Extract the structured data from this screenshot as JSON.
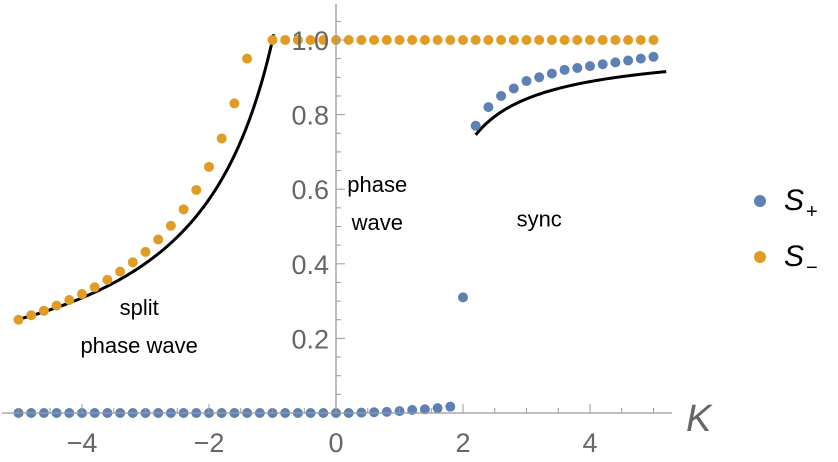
{
  "chart_data": {
    "type": "scatter",
    "xlabel": "K",
    "ylabel": "",
    "xlim": [
      -5.2,
      5.2
    ],
    "ylim": [
      0,
      1.1
    ],
    "x_ticks": [
      -4,
      -2,
      0,
      2,
      4
    ],
    "x_tick_labels": [
      "−4",
      "−2",
      "0",
      "2",
      "4"
    ],
    "y_ticks": [
      0.2,
      0.4,
      0.6,
      0.8,
      1.0
    ],
    "y_tick_labels": [
      "0.2",
      "0.4",
      "0.6",
      "0.8",
      "1.0"
    ],
    "grid": false,
    "legend_position": "right",
    "series": [
      {
        "name": "S",
        "subscript": "+",
        "color": "#5e81b5",
        "points": [
          [
            -5.0,
            0
          ],
          [
            -4.8,
            0
          ],
          [
            -4.6,
            0
          ],
          [
            -4.4,
            0
          ],
          [
            -4.2,
            0
          ],
          [
            -4.0,
            0
          ],
          [
            -3.8,
            0
          ],
          [
            -3.6,
            0
          ],
          [
            -3.4,
            0
          ],
          [
            -3.2,
            0
          ],
          [
            -3.0,
            0
          ],
          [
            -2.8,
            0
          ],
          [
            -2.6,
            0
          ],
          [
            -2.4,
            0
          ],
          [
            -2.2,
            0
          ],
          [
            -2.0,
            0
          ],
          [
            -1.8,
            0
          ],
          [
            -1.6,
            0
          ],
          [
            -1.4,
            0
          ],
          [
            -1.2,
            0
          ],
          [
            -1.0,
            0
          ],
          [
            -0.8,
            0
          ],
          [
            -0.6,
            0
          ],
          [
            -0.4,
            0
          ],
          [
            -0.2,
            0
          ],
          [
            0.0,
            0
          ],
          [
            0.2,
            0
          ],
          [
            0.4,
            0.001
          ],
          [
            0.6,
            0.002
          ],
          [
            0.8,
            0.003
          ],
          [
            1.0,
            0.005
          ],
          [
            1.2,
            0.008
          ],
          [
            1.4,
            0.01
          ],
          [
            1.6,
            0.013
          ],
          [
            1.8,
            0.017
          ],
          [
            2.0,
            0.31
          ],
          [
            2.2,
            0.77
          ],
          [
            2.4,
            0.82
          ],
          [
            2.6,
            0.85
          ],
          [
            2.8,
            0.87
          ],
          [
            3.0,
            0.89
          ],
          [
            3.2,
            0.9
          ],
          [
            3.4,
            0.91
          ],
          [
            3.6,
            0.92
          ],
          [
            3.8,
            0.925
          ],
          [
            4.0,
            0.93
          ],
          [
            4.2,
            0.935
          ],
          [
            4.4,
            0.94
          ],
          [
            4.6,
            0.945
          ],
          [
            4.8,
            0.95
          ],
          [
            5.0,
            0.955
          ]
        ]
      },
      {
        "name": "S",
        "subscript": "−",
        "color": "#e19c24",
        "points": [
          [
            -5.0,
            0.25
          ],
          [
            -4.8,
            0.262
          ],
          [
            -4.6,
            0.274
          ],
          [
            -4.4,
            0.288
          ],
          [
            -4.2,
            0.303
          ],
          [
            -4.0,
            0.319
          ],
          [
            -3.8,
            0.337
          ],
          [
            -3.6,
            0.357
          ],
          [
            -3.4,
            0.379
          ],
          [
            -3.2,
            0.404
          ],
          [
            -3.0,
            0.432
          ],
          [
            -2.8,
            0.465
          ],
          [
            -2.6,
            0.502
          ],
          [
            -2.4,
            0.546
          ],
          [
            -2.2,
            0.598
          ],
          [
            -2.0,
            0.66
          ],
          [
            -1.8,
            0.736
          ],
          [
            -1.6,
            0.83
          ],
          [
            -1.4,
            0.95
          ],
          [
            -1.0,
            1.0
          ],
          [
            -0.8,
            1.0
          ],
          [
            -0.6,
            1.0
          ],
          [
            -0.4,
            1.0
          ],
          [
            -0.2,
            1.0
          ],
          [
            0.0,
            1.0
          ],
          [
            0.2,
            1.0
          ],
          [
            0.4,
            1.0
          ],
          [
            0.6,
            1.0
          ],
          [
            0.8,
            1.0
          ],
          [
            1.0,
            1.0
          ],
          [
            1.2,
            1.0
          ],
          [
            1.4,
            1.0
          ],
          [
            1.6,
            1.0
          ],
          [
            1.8,
            1.0
          ],
          [
            2.0,
            1.0
          ],
          [
            2.2,
            1.0
          ],
          [
            2.4,
            1.0
          ],
          [
            2.6,
            1.0
          ],
          [
            2.8,
            1.0
          ],
          [
            3.0,
            1.0
          ],
          [
            3.2,
            1.0
          ],
          [
            3.4,
            1.0
          ],
          [
            3.6,
            1.0
          ],
          [
            3.8,
            1.0
          ],
          [
            4.0,
            1.0
          ],
          [
            4.2,
            1.0
          ],
          [
            4.4,
            1.0
          ],
          [
            4.6,
            1.0
          ],
          [
            4.8,
            1.0
          ],
          [
            5.0,
            1.0
          ]
        ]
      }
    ],
    "curves": [
      {
        "color": "#000000",
        "x_range": [
          -5.0,
          -0.98
        ],
        "description": "analytic split-phase-wave branch"
      },
      {
        "color": "#000000",
        "x_range": [
          2.2,
          5.2
        ],
        "description": "analytic sync branch"
      }
    ],
    "annotations": [
      {
        "lines": [
          "split",
          "phase wave"
        ],
        "x": -3.1,
        "y": 0.22
      },
      {
        "lines": [
          "phase",
          "wave"
        ],
        "x": 0.65,
        "y": 0.55
      },
      {
        "lines": [
          "sync"
        ],
        "x": 3.2,
        "y": 0.5
      }
    ]
  }
}
